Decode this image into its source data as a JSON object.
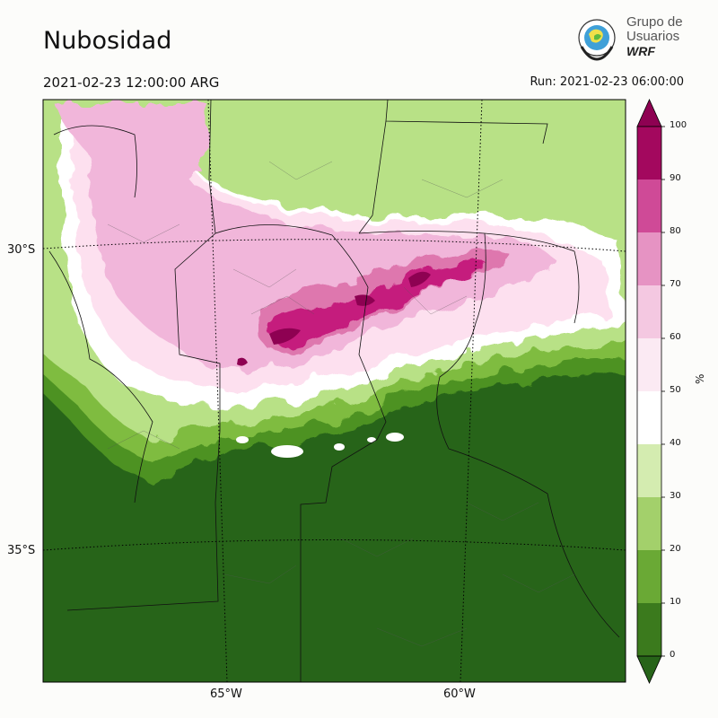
{
  "title": "Nubosidad",
  "valid_time": "2021-02-23 12:00:00 ARG",
  "run_time": "Run: 2021-02-23 06:00:00",
  "logo": {
    "line1": "Grupo de",
    "line2": "Usuarios",
    "line3": "WRF",
    "icon": "wrf-globe-emblem-icon"
  },
  "map": {
    "variable": "cloud-cover",
    "lat_labels": [
      "30°S",
      "35°S"
    ],
    "lon_labels": [
      "65°W",
      "60°W"
    ],
    "gridlines": "dotted"
  },
  "colorbar": {
    "unit": "%",
    "ticks": [
      "100",
      "90",
      "80",
      "70",
      "60",
      "50",
      "40",
      "30",
      "20",
      "10",
      "0"
    ],
    "colors": [
      "#8e0152",
      "#c51b7d",
      "#de77ae",
      "#f1b6da",
      "#fde0ef",
      "#ffffff",
      "#e6f5d0",
      "#b8e186",
      "#7fbc41",
      "#4d9221",
      "#276419"
    ],
    "extend": "both"
  }
}
